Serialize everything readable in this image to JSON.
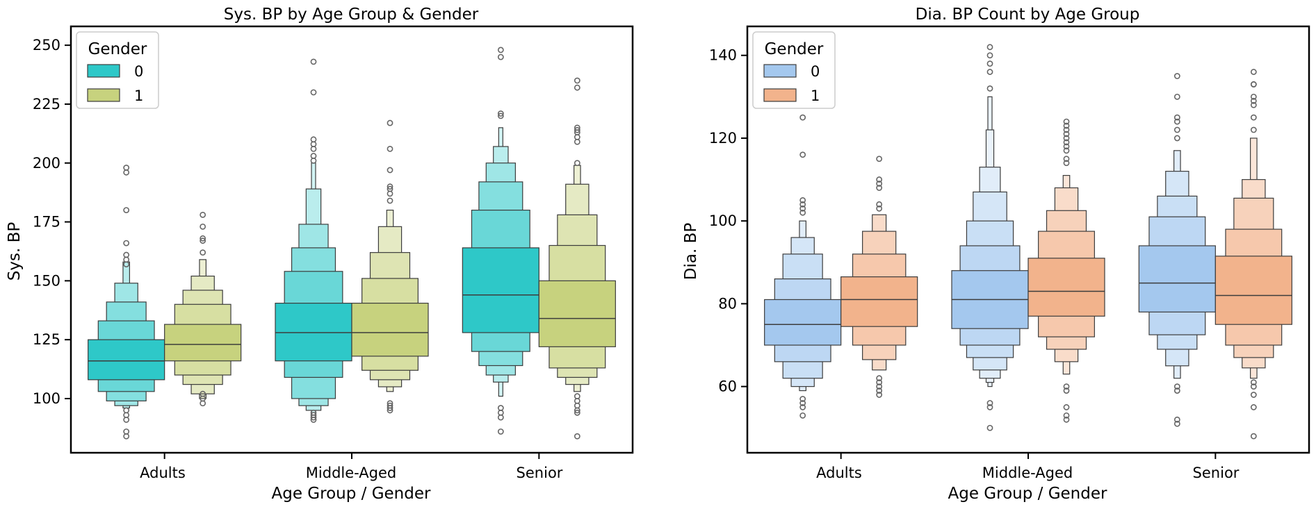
{
  "chart_data": [
    {
      "type": "boxen",
      "title": "Sys. BP by Age Group & Gender",
      "xlabel": "Age Group / Gender",
      "ylabel": "Sys. BP",
      "ylim": [
        77,
        258
      ],
      "yticks": [
        100,
        125,
        150,
        175,
        200,
        225,
        250
      ],
      "grid": false,
      "categories": [
        "Adults",
        "Middle-Aged",
        "Senior"
      ],
      "legend": {
        "title": "Gender",
        "position": "top-left"
      },
      "series": [
        {
          "name": "0",
          "color": "#2ec8c8",
          "groups": [
            {
              "median": 116,
              "levels": [
                [
                  108,
                  125
                ],
                [
                  103,
                  133
                ],
                [
                  99,
                  141
                ],
                [
                  97,
                  149
                ],
                [
                  96,
                  158
                ]
              ],
              "outliers": [
                84,
                86,
                91,
                93,
                95,
                180,
                196,
                198,
                157,
                159,
                161,
                166
              ]
            },
            {
              "median": 128,
              "levels": [
                [
                  116,
                  140.5
                ],
                [
                  109,
                  154
                ],
                [
                  100,
                  164
                ],
                [
                  97,
                  174
                ],
                [
                  95,
                  189
                ],
                [
                  94,
                  200
                ]
              ],
              "outliers": [
                91,
                93,
                92,
                94,
                201,
                203,
                206,
                208,
                210,
                230,
                243
              ]
            },
            {
              "median": 144,
              "levels": [
                [
                  128,
                  164
                ],
                [
                  120,
                  180
                ],
                [
                  114,
                  192
                ],
                [
                  110,
                  200
                ],
                [
                  107,
                  207
                ],
                [
                  101,
                  215
                ]
              ],
              "outliers": [
                86,
                92,
                94,
                96,
                220,
                221,
                245,
                248
              ]
            }
          ]
        },
        {
          "name": "1",
          "color": "#c7d27e",
          "groups": [
            {
              "median": 123,
              "levels": [
                [
                  116,
                  131.5
                ],
                [
                  110,
                  140
                ],
                [
                  106,
                  146
                ],
                [
                  102,
                  152
                ],
                [
                  100,
                  159
                ]
              ],
              "outliers": [
                98,
                100,
                102,
                162,
                167,
                168,
                173,
                178
              ]
            },
            {
              "median": 128,
              "levels": [
                [
                  118,
                  140.5
                ],
                [
                  112,
                  151
                ],
                [
                  108,
                  162
                ],
                [
                  105,
                  173
                ],
                [
                  103,
                  180
                ]
              ],
              "outliers": [
                95,
                96,
                97,
                98,
                184,
                187,
                189,
                190,
                197,
                206,
                217
              ]
            },
            {
              "median": 134,
              "levels": [
                [
                  122,
                  150
                ],
                [
                  113,
                  165
                ],
                [
                  109,
                  178
                ],
                [
                  106,
                  191
                ],
                [
                  103,
                  199
                ]
              ],
              "outliers": [
                84,
                94,
                95,
                97,
                99,
                101,
                200,
                209,
                211,
                213,
                214,
                215,
                232,
                235
              ]
            }
          ]
        }
      ]
    },
    {
      "type": "boxen",
      "title": "Dia. BP Count by Age Group",
      "xlabel": "Age Group / Gender",
      "ylabel": "Dia. BP",
      "ylim": [
        44,
        147
      ],
      "yticks": [
        60,
        80,
        100,
        120,
        140
      ],
      "grid": false,
      "categories": [
        "Adults",
        "Middle-Aged",
        "Senior"
      ],
      "legend": {
        "title": "Gender",
        "position": "top-left"
      },
      "series": [
        {
          "name": "0",
          "color": "#a4c8ee",
          "groups": [
            {
              "median": 75,
              "levels": [
                [
                  70,
                  81
                ],
                [
                  66,
                  86
                ],
                [
                  62,
                  92
                ],
                [
                  60,
                  96
                ],
                [
                  59,
                  100
                ]
              ],
              "outliers": [
                53,
                55,
                56,
                57,
                102,
                103,
                104,
                105,
                116,
                125
              ]
            },
            {
              "median": 81,
              "levels": [
                [
                  74,
                  88
                ],
                [
                  70,
                  94
                ],
                [
                  67,
                  100
                ],
                [
                  64,
                  107
                ],
                [
                  62,
                  113
                ],
                [
                  61,
                  122
                ],
                [
                  60,
                  130
                ]
              ],
              "outliers": [
                50,
                55,
                56,
                132,
                136,
                138,
                140,
                142
              ]
            },
            {
              "median": 85,
              "levels": [
                [
                  78,
                  94
                ],
                [
                  72.5,
                  101
                ],
                [
                  69,
                  106
                ],
                [
                  65,
                  112
                ],
                [
                  62,
                  117
                ]
              ],
              "outliers": [
                51,
                52,
                59,
                60,
                120,
                122,
                124,
                125,
                130,
                135
              ]
            }
          ]
        },
        {
          "name": "1",
          "color": "#f2b38c",
          "groups": [
            {
              "median": 81,
              "levels": [
                [
                  74.5,
                  86.5
                ],
                [
                  70,
                  92
                ],
                [
                  66.5,
                  97.5
                ],
                [
                  64,
                  101.5
                ]
              ],
              "outliers": [
                58,
                59,
                60,
                61,
                62,
                103,
                104,
                108,
                109,
                110,
                115
              ]
            },
            {
              "median": 83,
              "levels": [
                [
                  77,
                  91
                ],
                [
                  72,
                  97.5
                ],
                [
                  69,
                  102.5
                ],
                [
                  66,
                  108
                ],
                [
                  63,
                  111
                ]
              ],
              "outliers": [
                52,
                53,
                55,
                59,
                60,
                114,
                115,
                117,
                118,
                119,
                120,
                121,
                122,
                123,
                124
              ]
            },
            {
              "median": 82,
              "levels": [
                [
                  75,
                  91.5
                ],
                [
                  70,
                  98
                ],
                [
                  67,
                  105.5
                ],
                [
                  64.5,
                  110
                ],
                [
                  62,
                  120
                ]
              ],
              "outliers": [
                48,
                55,
                58,
                60,
                61,
                122,
                125,
                128,
                129,
                130,
                133,
                133,
                136
              ]
            }
          ]
        }
      ]
    }
  ]
}
